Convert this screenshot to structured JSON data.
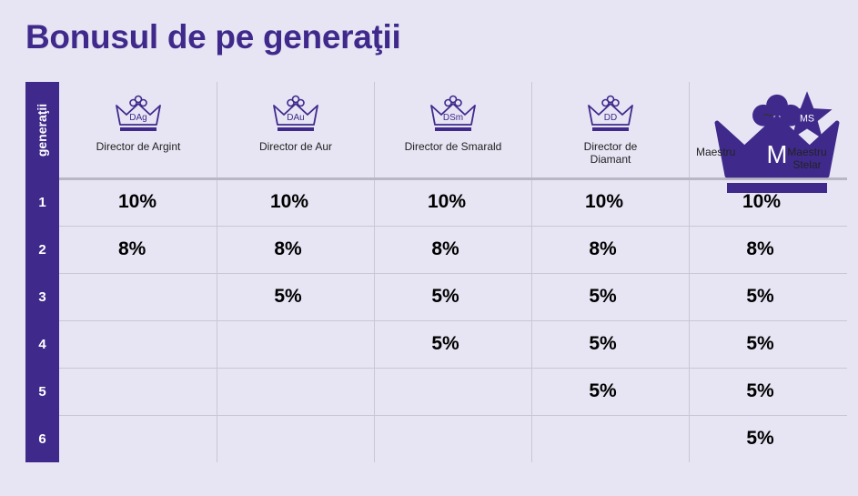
{
  "title": "Bonusul de pe generaţii",
  "side_header": "generaţii",
  "columns": [
    {
      "abbr": "DAg",
      "label": "Director de Argint"
    },
    {
      "abbr": "DAu",
      "label": "Director de Aur"
    },
    {
      "abbr": "DSm",
      "label": "Director de Smarald"
    },
    {
      "abbr": "DD",
      "label": "Director de\nDiamant"
    },
    {
      "abbr_a": "M",
      "label_a": "Maestru",
      "tilde": "~",
      "abbr_b": "MS",
      "label_b": "Maestru\nStelar"
    }
  ],
  "rows": [
    {
      "gen": "1",
      "values": [
        "10%",
        "10%",
        "10%",
        "10%",
        "10%"
      ]
    },
    {
      "gen": "2",
      "values": [
        "8%",
        "8%",
        "8%",
        "8%",
        "8%"
      ]
    },
    {
      "gen": "3",
      "values": [
        "",
        "5%",
        "5%",
        "5%",
        "5%"
      ]
    },
    {
      "gen": "4",
      "values": [
        "",
        "",
        "5%",
        "5%",
        "5%"
      ]
    },
    {
      "gen": "5",
      "values": [
        "",
        "",
        "",
        "5%",
        "5%"
      ]
    },
    {
      "gen": "6",
      "values": [
        "",
        "",
        "",
        "",
        "5%"
      ]
    }
  ],
  "colors": {
    "brand": "#3f2a8c",
    "background": "#e7e4f3"
  },
  "icons": [
    "crown-outline-icon",
    "crown-filled-icon",
    "star-filled-icon"
  ]
}
